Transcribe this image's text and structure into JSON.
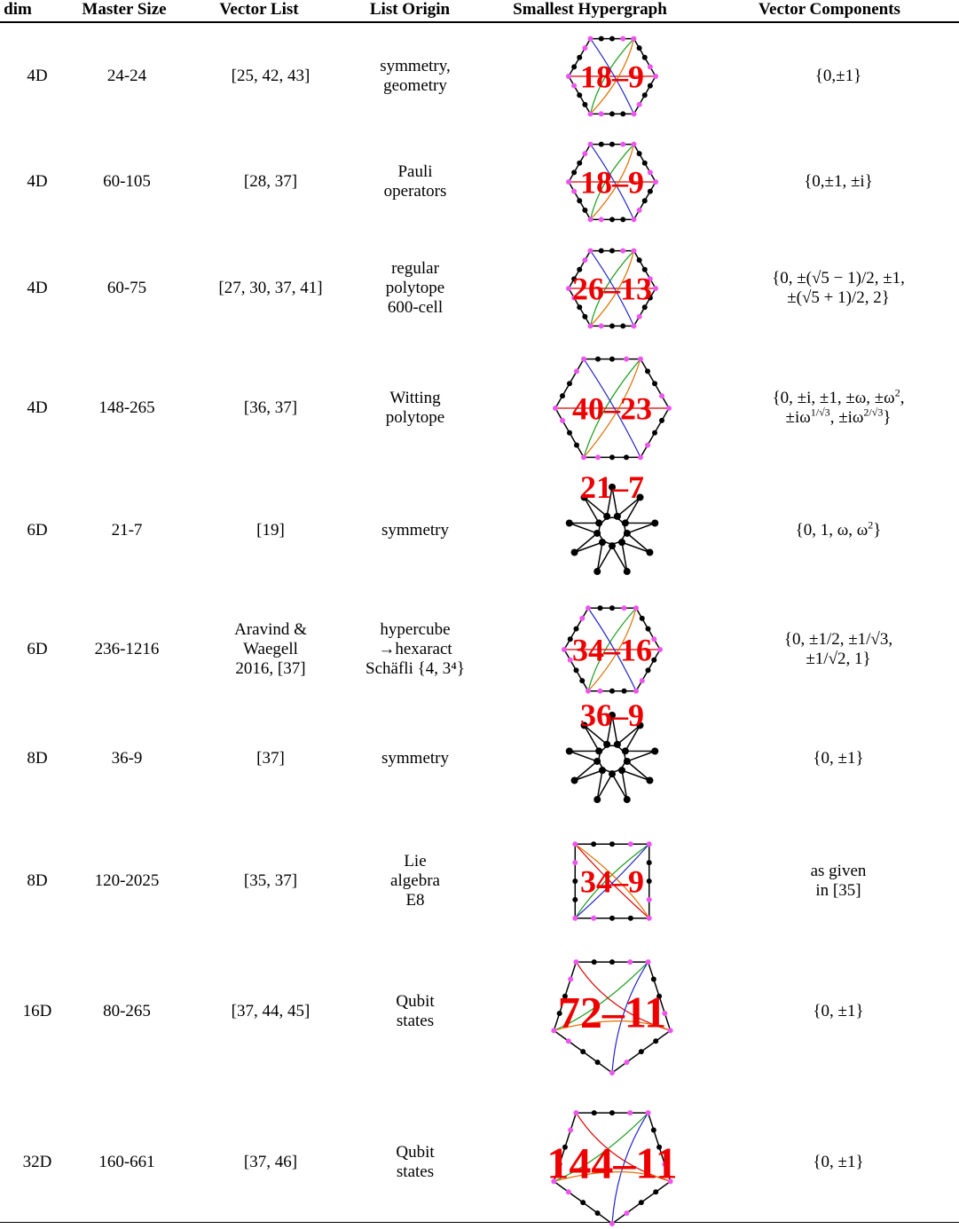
{
  "header": [
    "dim",
    "Master Size",
    "Vector List",
    "List Origin",
    "Smallest Hypergraph",
    "Vector Components"
  ],
  "rows": [
    {
      "dim": "4D",
      "master_size": "24-24",
      "vector_list": [
        "[25, 42, 43]"
      ],
      "list_origin": [
        "symmetry,",
        "geometry"
      ],
      "hypergraph": "18–9",
      "components": [
        [
          "{0,±1}"
        ]
      ]
    },
    {
      "dim": "4D",
      "master_size": "60-105",
      "vector_list": [
        "[28, 37]"
      ],
      "list_origin": [
        "Pauli",
        "operators"
      ],
      "hypergraph": "18–9",
      "components": [
        [
          "{0,±1, ±i}"
        ]
      ]
    },
    {
      "dim": "4D",
      "master_size": "60-75",
      "vector_list": [
        "[27, 30, 37, 41]"
      ],
      "list_origin": [
        "regular",
        "polytope",
        "600-cell"
      ],
      "hypergraph": "26–13",
      "components": [
        [
          "{0, ±(√5 − 1)/2, ±1,"
        ],
        [
          "±(√5 + 1)/2, 2}"
        ]
      ]
    },
    {
      "dim": "4D",
      "master_size": "148-265",
      "vector_list": [
        "[36, 37]"
      ],
      "list_origin": [
        "Witting",
        "polytope"
      ],
      "hypergraph": "40–23",
      "components": [
        [
          "{0, ±i, ±1, ±ω, ±ω",
          {
            "sup": "2"
          },
          ","
        ],
        [
          "±iω",
          {
            "sup": "1/√3"
          },
          ", ±iω",
          {
            "sup": "2/√3"
          },
          "}"
        ]
      ]
    },
    {
      "dim": "6D",
      "master_size": "21-7",
      "vector_list": [
        "[19]"
      ],
      "list_origin": [
        "symmetry"
      ],
      "hypergraph": "21–7",
      "components": [
        [
          "{0, 1, ω, ω",
          {
            "sup": "2"
          },
          "}"
        ]
      ]
    },
    {
      "dim": "6D",
      "master_size": "236-1216",
      "vector_list": [
        "Aravind &",
        "Waegell",
        "2016,  [37]"
      ],
      "list_origin": [
        "hypercube",
        "→hexaract",
        "Schäfli {4, 3⁴}"
      ],
      "hypergraph": "34–16",
      "components": [
        [
          "{0, ±1/2, ±1/√3,"
        ],
        [
          "±1/√2, 1}"
        ]
      ]
    },
    {
      "dim": "8D",
      "master_size": "36-9",
      "vector_list": [
        "[37]"
      ],
      "list_origin": [
        "symmetry"
      ],
      "hypergraph": "36–9",
      "components": [
        [
          "{0, ±1}"
        ]
      ]
    },
    {
      "dim": "8D",
      "master_size": "120-2025",
      "vector_list": [
        "[35, 37]"
      ],
      "list_origin": [
        "Lie",
        "algebra",
        "E8"
      ],
      "hypergraph": "34–9",
      "components": [
        [
          "as given"
        ],
        [
          "in [35]"
        ]
      ]
    },
    {
      "dim": "16D",
      "master_size": "80-265",
      "vector_list": [
        "[37, 44, 45]"
      ],
      "list_origin": [
        "Qubit",
        "states"
      ],
      "hypergraph": "72–11",
      "components": [
        [
          "{0, ±1}"
        ]
      ]
    },
    {
      "dim": "32D",
      "master_size": "160-661",
      "vector_list": [
        "[37, 46]"
      ],
      "list_origin": [
        "Qubit",
        "states"
      ],
      "hypergraph": "144–11",
      "components": [
        [
          "{0, ±1}"
        ]
      ]
    }
  ]
}
